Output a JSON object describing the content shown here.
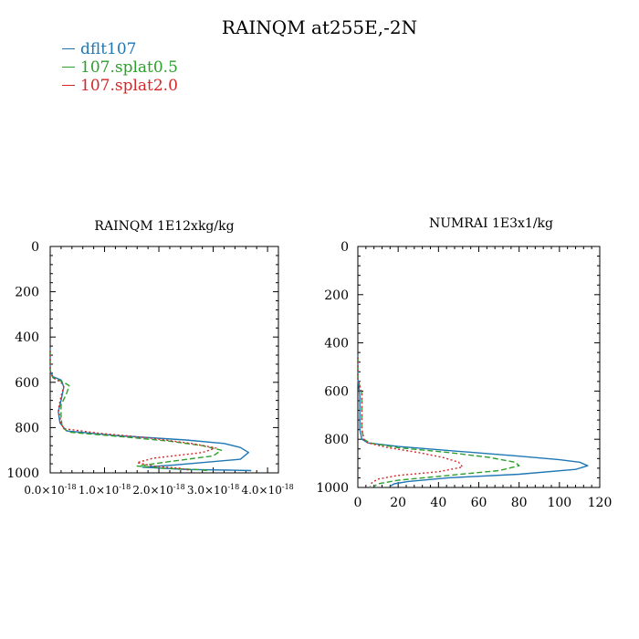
{
  "title": "RAINQM at255E,-2N",
  "legend": [
    {
      "label": "dflt107",
      "color": "#1f77b4",
      "dash": "solid"
    },
    {
      "label": "107.splat0.5",
      "color": "#2ca02c",
      "dash": "dashed"
    },
    {
      "label": "107.splat2.0",
      "color": "#d62728",
      "dash": "dotted"
    }
  ],
  "chart_data": [
    {
      "type": "line",
      "title": "RAINQM  1E12xkg/kg",
      "y_reversed": true,
      "ylim": [
        1000,
        0
      ],
      "xlim": [
        0,
        4.2e-18
      ],
      "xticks": [
        0,
        1e-18,
        2e-18,
        3e-18,
        4e-18
      ],
      "xtick_labels": [
        {
          "mantissa": "0.0",
          "exp": "-18"
        },
        {
          "mantissa": "1.0",
          "exp": "-18"
        },
        {
          "mantissa": "2.0",
          "exp": "-18"
        },
        {
          "mantissa": "3.0",
          "exp": "-18"
        },
        {
          "mantissa": "4.0",
          "exp": "-18"
        }
      ],
      "yticks": [
        0,
        200,
        400,
        600,
        800,
        1000
      ],
      "ytick_labels": [
        "0",
        "200",
        "400",
        "600",
        "800",
        "1000"
      ],
      "series": [
        {
          "name": "dflt107",
          "color": "#1f77b4",
          "dash": "solid",
          "points": [
            [
              0,
              450
            ],
            [
              0,
              550
            ],
            [
              5e-20,
              575
            ],
            [
              2e-19,
              590
            ],
            [
              2.5e-19,
              620
            ],
            [
              2e-19,
              680
            ],
            [
              1.5e-19,
              730
            ],
            [
              1.8e-19,
              780
            ],
            [
              3e-19,
              815
            ],
            [
              1.2e-18,
              835
            ],
            [
              2.5e-18,
              855
            ],
            [
              3.2e-18,
              870
            ],
            [
              3.5e-18,
              888
            ],
            [
              3.65e-18,
              910
            ],
            [
              3.5e-18,
              940
            ],
            [
              2.3e-18,
              965
            ],
            [
              1.7e-18,
              975
            ],
            [
              2.5e-18,
              985
            ],
            [
              3.3e-18,
              988
            ],
            [
              3.7e-18,
              990
            ]
          ]
        },
        {
          "name": "107.splat0.5",
          "color": "#2ca02c",
          "dash": "dashed",
          "points": [
            [
              0,
              460
            ],
            [
              0,
              550
            ],
            [
              5e-20,
              580
            ],
            [
              2.5e-19,
              600
            ],
            [
              3.5e-19,
              615
            ],
            [
              3e-19,
              650
            ],
            [
              2e-19,
              700
            ],
            [
              2e-19,
              750
            ],
            [
              2.2e-19,
              800
            ],
            [
              3.5e-19,
              820
            ],
            [
              1.3e-18,
              840
            ],
            [
              2.2e-18,
              860
            ],
            [
              2.8e-18,
              880
            ],
            [
              3.15e-18,
              900
            ],
            [
              3e-18,
              925
            ],
            [
              2.2e-18,
              950
            ],
            [
              1.6e-18,
              970
            ],
            [
              2.1e-18,
              980
            ],
            [
              2.7e-18,
              985
            ],
            [
              2.9e-18,
              990
            ]
          ]
        },
        {
          "name": "107.splat2.0",
          "color": "#d62728",
          "dash": "dotted",
          "points": [
            [
              0,
              460
            ],
            [
              0,
              550
            ],
            [
              5e-20,
              580
            ],
            [
              2e-19,
              600
            ],
            [
              2.5e-19,
              620
            ],
            [
              2e-19,
              660
            ],
            [
              1.5e-19,
              720
            ],
            [
              2e-19,
              780
            ],
            [
              2.5e-19,
              805
            ],
            [
              9e-19,
              825
            ],
            [
              1.8e-18,
              845
            ],
            [
              2.6e-18,
              870
            ],
            [
              3.05e-18,
              890
            ],
            [
              2.8e-18,
              910
            ],
            [
              1.9e-18,
              935
            ],
            [
              1.6e-18,
              955
            ],
            [
              1.9e-18,
              970
            ],
            [
              2.4e-18,
              980
            ],
            [
              2.6e-18,
              990
            ]
          ]
        }
      ]
    },
    {
      "type": "line",
      "title": "NUMRAI  1E3x1/kg",
      "y_reversed": true,
      "ylim": [
        1000,
        0
      ],
      "xlim": [
        0,
        120
      ],
      "xticks": [
        0,
        20,
        40,
        60,
        80,
        100,
        120
      ],
      "xtick_labels": [
        "0",
        "20",
        "40",
        "60",
        "80",
        "100",
        "120"
      ],
      "yticks": [
        0,
        200,
        400,
        600,
        800,
        1000
      ],
      "ytick_labels": [
        "0",
        "200",
        "400",
        "600",
        "800",
        "1000"
      ],
      "series": [
        {
          "name": "dflt107",
          "color": "#1f77b4",
          "dash": "solid",
          "points": [
            [
              0,
              450
            ],
            [
              0,
              550
            ],
            [
              0.5,
              580
            ],
            [
              1,
              620
            ],
            [
              1,
              700
            ],
            [
              1,
              760
            ],
            [
              2,
              800
            ],
            [
              5,
              815
            ],
            [
              20,
              830
            ],
            [
              50,
              850
            ],
            [
              80,
              870
            ],
            [
              100,
              885
            ],
            [
              110,
              895
            ],
            [
              114,
              910
            ],
            [
              108,
              925
            ],
            [
              80,
              945
            ],
            [
              45,
              960
            ],
            [
              25,
              975
            ],
            [
              18,
              985
            ],
            [
              16,
              995
            ]
          ]
        },
        {
          "name": "107.splat0.5",
          "color": "#2ca02c",
          "dash": "dashed",
          "points": [
            [
              0,
              460
            ],
            [
              0,
              550
            ],
            [
              1,
              580
            ],
            [
              2,
              610
            ],
            [
              2,
              700
            ],
            [
              2,
              760
            ],
            [
              3,
              800
            ],
            [
              6,
              815
            ],
            [
              20,
              835
            ],
            [
              45,
              855
            ],
            [
              65,
              875
            ],
            [
              78,
              895
            ],
            [
              80,
              910
            ],
            [
              70,
              930
            ],
            [
              45,
              950
            ],
            [
              20,
              970
            ],
            [
              10,
              985
            ],
            [
              8,
              995
            ]
          ]
        },
        {
          "name": "107.splat2.0",
          "color": "#d62728",
          "dash": "dotted",
          "points": [
            [
              0,
              460
            ],
            [
              0,
              550
            ],
            [
              1,
              580
            ],
            [
              2,
              610
            ],
            [
              2,
              700
            ],
            [
              2,
              760
            ],
            [
              3,
              800
            ],
            [
              5,
              815
            ],
            [
              15,
              835
            ],
            [
              30,
              855
            ],
            [
              42,
              875
            ],
            [
              50,
              895
            ],
            [
              52,
              915
            ],
            [
              40,
              935
            ],
            [
              20,
              950
            ],
            [
              10,
              965
            ],
            [
              7,
              980
            ],
            [
              6,
              995
            ]
          ]
        }
      ]
    }
  ]
}
